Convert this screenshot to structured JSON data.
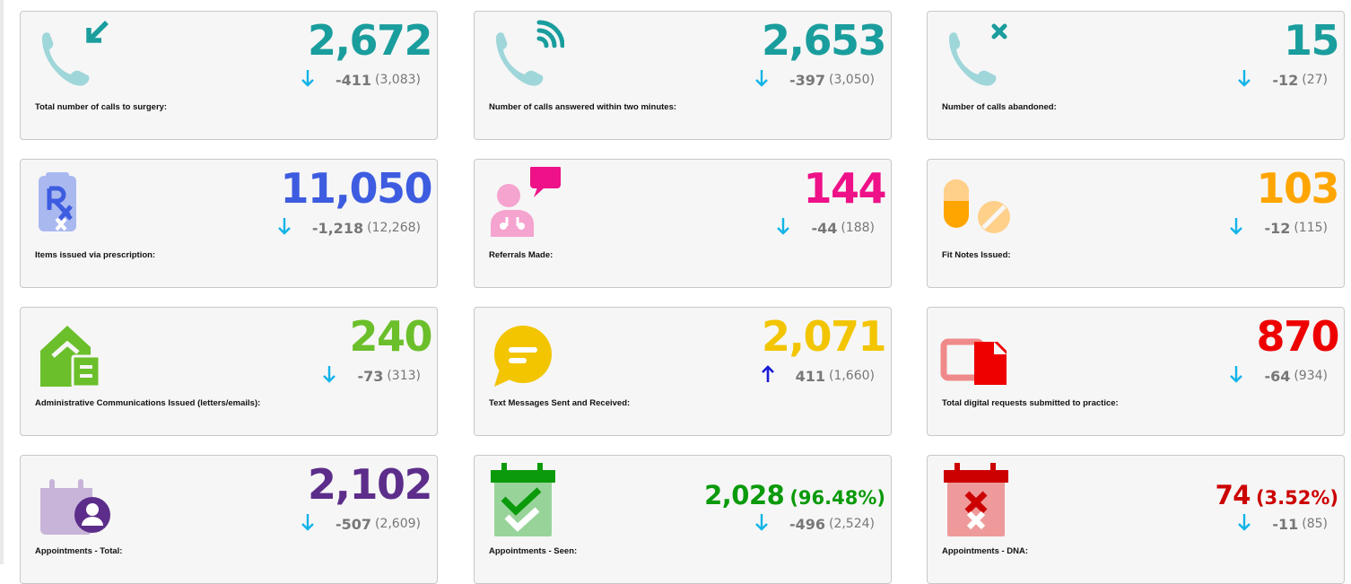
{
  "colors": {
    "teal": "#1a9d9d",
    "blue": "#3d5ce0",
    "magenta": "#ee1188",
    "orange": "#ffa500",
    "green": "#6bbf2a",
    "yellow": "#f2c500",
    "red": "#ee0000",
    "purple": "#5c2d8a",
    "green_dark": "#0b9a0b",
    "red_dark": "#cc0000",
    "arrow_down": "#11b4e8",
    "arrow_up": "#1a1ad8"
  },
  "cards": [
    {
      "icon": "phone-incoming-icon",
      "value": "2,672",
      "value_color": "teal",
      "direction": "down",
      "delta": "-411",
      "previous": "(3,083)",
      "label": "Total number of calls to surgery:"
    },
    {
      "icon": "phone-answered-icon",
      "value": "2,653",
      "value_color": "teal",
      "direction": "down",
      "delta": "-397",
      "previous": "(3,050)",
      "label": "Number of calls answered within two minutes:"
    },
    {
      "icon": "phone-abandoned-icon",
      "value": "15",
      "value_color": "teal",
      "direction": "down",
      "delta": "-12",
      "previous": "(27)",
      "label": "Number of calls abandoned:"
    },
    {
      "icon": "prescription-icon",
      "value": "11,050",
      "value_color": "blue",
      "direction": "down",
      "delta": "-1,218",
      "previous": "(12,268)",
      "label": "Items issued via prescription:"
    },
    {
      "icon": "referral-doctor-icon",
      "value": "144",
      "value_color": "magenta",
      "direction": "down",
      "delta": "-44",
      "previous": "(188)",
      "label": "Referrals Made:"
    },
    {
      "icon": "pills-icon",
      "value": "103",
      "value_color": "orange",
      "direction": "down",
      "delta": "-12",
      "previous": "(115)",
      "label": "Fit Notes Issued:"
    },
    {
      "icon": "house-letter-icon",
      "value": "240",
      "value_color": "green",
      "direction": "down",
      "delta": "-73",
      "previous": "(313)",
      "label": "Administrative Communications Issued (letters/emails):"
    },
    {
      "icon": "chat-bubble-icon",
      "value": "2,071",
      "value_color": "yellow",
      "direction": "up",
      "delta": "411",
      "previous": "(1,660)",
      "label": "Text Messages Sent and Received:"
    },
    {
      "icon": "digital-request-icon",
      "value": "870",
      "value_color": "red",
      "direction": "down",
      "delta": "-64",
      "previous": "(934)",
      "label": "Total digital requests submitted to practice:"
    },
    {
      "icon": "calendar-person-icon",
      "value": "2,102",
      "value_color": "purple",
      "direction": "down",
      "delta": "-507",
      "previous": "(2,609)",
      "label": "Appointments - Total:"
    },
    {
      "icon": "calendar-check-icon",
      "value": "2,028",
      "percent": "(96.48%)",
      "value_color": "green_dark",
      "direction": "down",
      "delta": "-496",
      "previous": "(2,524)",
      "label": "Appointments - Seen:"
    },
    {
      "icon": "calendar-cross-icon",
      "value": "74",
      "percent": "(3.52%)",
      "value_color": "red_dark",
      "direction": "down",
      "delta": "-11",
      "previous": "(85)",
      "label": "Appointments - DNA:"
    }
  ]
}
